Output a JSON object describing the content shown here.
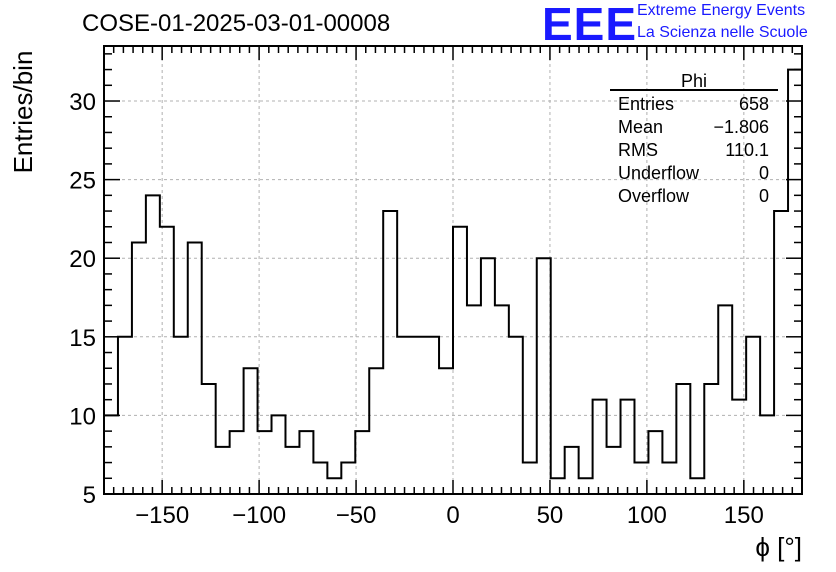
{
  "header": {
    "run_title": "COSE-01-2025-03-01-00008",
    "logo_text": "EEE",
    "logo_line1": "Extreme Energy Events",
    "logo_line2": "La Scienza nelle Scuole",
    "logo_color": "#1a1aff"
  },
  "stats": {
    "title": "Phi",
    "rows": [
      {
        "label": "Entries",
        "value": "658"
      },
      {
        "label": "Mean",
        "value": "−1.806"
      },
      {
        "label": "RMS",
        "value": "110.1"
      },
      {
        "label": "Underflow",
        "value": "0"
      },
      {
        "label": "Overflow",
        "value": "0"
      }
    ]
  },
  "chart_data": {
    "type": "bar",
    "style": "step-histogram",
    "title": "COSE-01-2025-03-01-00008",
    "xlabel": "ϕ [°]",
    "ylabel": "Entries/bin",
    "xlim": [
      -180,
      180
    ],
    "ylim": [
      5,
      33.5
    ],
    "grid": true,
    "bin_width": 7.2,
    "xticks": [
      -150,
      -100,
      -50,
      0,
      50,
      100,
      150
    ],
    "xtick_labels": [
      "−150",
      "−100",
      "−50",
      "0",
      "50",
      "100",
      "150"
    ],
    "yticks": [
      5,
      10,
      15,
      20,
      25,
      30
    ],
    "ytick_labels": [
      "5",
      "10",
      "15",
      "20",
      "25",
      "30"
    ],
    "values": [
      10,
      15,
      21,
      24,
      22,
      15,
      21,
      12,
      8,
      9,
      13,
      9,
      10,
      8,
      9,
      7,
      6,
      7,
      9,
      13,
      23,
      15,
      15,
      15,
      13,
      22,
      17,
      20,
      17,
      15,
      7,
      20,
      6,
      8,
      6,
      11,
      8,
      11,
      7,
      9,
      7,
      12,
      6,
      12,
      17,
      11,
      15,
      10,
      23,
      32
    ],
    "line_color": "#000000",
    "grid_color": "#b0b0b0"
  }
}
